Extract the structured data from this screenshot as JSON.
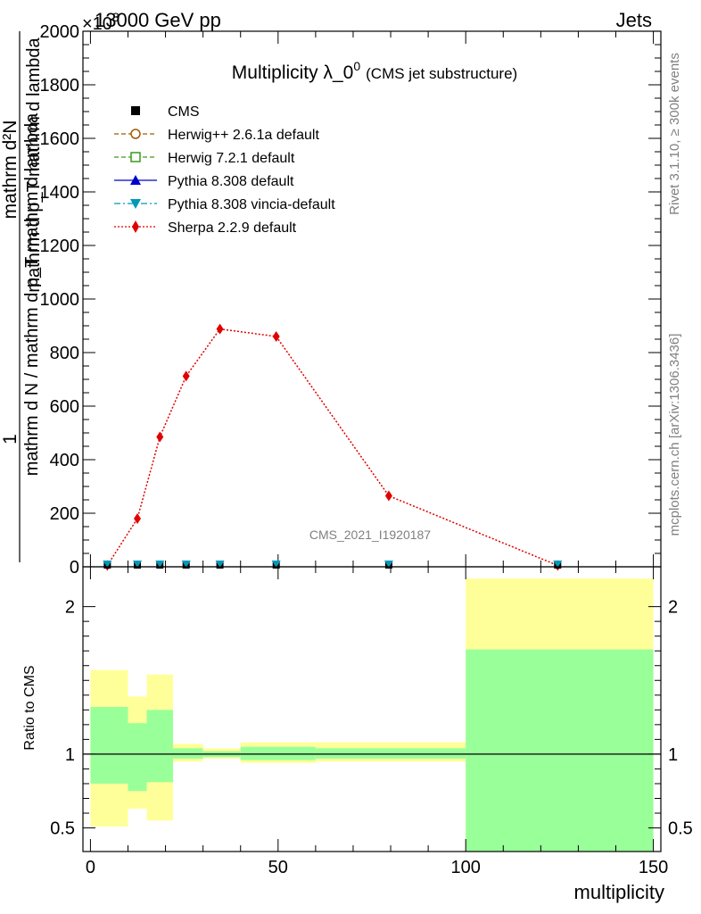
{
  "header": {
    "left": "13000 GeV pp",
    "right": "Jets",
    "exponent": "×10",
    "exponent_power": "3"
  },
  "side_labels": {
    "rivet": "Rivet 3.1.10, ≥ 300k events",
    "mcplots": "mcplots.cern.ch [arXiv:1306.3436]"
  },
  "watermark": "CMS_2021_I1920187",
  "chart_data": [
    {
      "type": "line",
      "title": "Multiplicity λ_0",
      "title_sup": "0",
      "subtitle": "(CMS jet substructure)",
      "ylabel_top": "1",
      "ylabel_numer": "mathrm d N / mathrm d p_T mathrm d lambda",
      "ylabel_numer_sub": "T",
      "ylabel_frac_top": "mathrm d²N",
      "ylabel_frac_bottom": "mathrm d p_T mathrm d lambda",
      "xlim": [
        -2,
        152
      ],
      "ylim": [
        0,
        2000
      ],
      "y_scale_factor": 1000,
      "yticks": [
        {
          "v": 0,
          "label": "0"
        },
        {
          "v": 200,
          "label": "200"
        },
        {
          "v": 400,
          "label": "400"
        },
        {
          "v": 600,
          "label": "600"
        },
        {
          "v": 800,
          "label": "800"
        },
        {
          "v": 1000,
          "label": "1000"
        },
        {
          "v": 1200,
          "label": "1200"
        },
        {
          "v": 1400,
          "label": "1400"
        },
        {
          "v": 1600,
          "label": "1600"
        },
        {
          "v": 1800,
          "label": "1800"
        },
        {
          "v": 2000,
          "label": "2000"
        }
      ],
      "legend": [
        {
          "label": "CMS",
          "color": "#000000",
          "marker": "square-filled",
          "line": "none"
        },
        {
          "label": "Herwig++ 2.6.1a default",
          "color": "#a05a00",
          "marker": "circle-open",
          "line": "dashed"
        },
        {
          "label": "Herwig 7.2.1 default",
          "color": "#3a9a1a",
          "marker": "square-open",
          "line": "dashed"
        },
        {
          "label": "Pythia 8.308 default",
          "color": "#0000cc",
          "marker": "triangle-up",
          "line": "solid"
        },
        {
          "label": "Pythia 8.308 vincia-default",
          "color": "#0099b8",
          "marker": "triangle-down",
          "line": "dashdot"
        },
        {
          "label": "Sherpa 2.2.9 default",
          "color": "#e00000",
          "marker": "diamond",
          "line": "dotted"
        }
      ],
      "series": [
        {
          "name": "Sherpa 2.2.9 default",
          "color": "#e00000",
          "x": [
            4.5,
            12.5,
            18.5,
            25.5,
            34.5,
            49.5,
            79.5,
            124.5
          ],
          "y": [
            5,
            180,
            485,
            712,
            888,
            860,
            265,
            5
          ]
        },
        {
          "name": "CMS",
          "color": "#000000",
          "x": [
            4.5,
            12.5,
            18.5,
            25.5,
            34.5,
            49.5,
            79.5,
            124.5
          ],
          "y": [
            0,
            0,
            0,
            0,
            0,
            0,
            0,
            0
          ]
        },
        {
          "name": "Pythia 8.308 vincia-default",
          "color": "#0099b8",
          "x": [
            4.5,
            12.5,
            18.5,
            25.5,
            34.5,
            49.5,
            79.5,
            124.5
          ],
          "y": [
            0,
            0,
            0,
            0,
            0,
            0,
            0,
            0
          ]
        }
      ]
    },
    {
      "type": "area",
      "ylabel": "Ratio to CMS",
      "xlabel": "multiplicity",
      "xlim": [
        -2,
        152
      ],
      "ylim": [
        0.34,
        2.27
      ],
      "yticks": [
        {
          "v": 0.5,
          "label": "0.5"
        },
        {
          "v": 1,
          "label": "1"
        },
        {
          "v": 2,
          "label": "2"
        }
      ],
      "xticks": [
        {
          "v": 0,
          "label": "0"
        },
        {
          "v": 50,
          "label": "50"
        },
        {
          "v": 100,
          "label": "100"
        },
        {
          "v": 150,
          "label": "150"
        }
      ],
      "reference_line": 1,
      "bands": [
        {
          "x0": 0,
          "x1": 10,
          "yellow": [
            0.51,
            1.57
          ],
          "green": [
            0.8,
            1.32
          ]
        },
        {
          "x0": 10,
          "x1": 15,
          "yellow": [
            0.63,
            1.39
          ],
          "green": [
            0.75,
            1.21
          ]
        },
        {
          "x0": 15,
          "x1": 22,
          "yellow": [
            0.55,
            1.54
          ],
          "green": [
            0.81,
            1.3
          ]
        },
        {
          "x0": 22,
          "x1": 30,
          "yellow": [
            0.95,
            1.07
          ],
          "green": [
            0.97,
            1.04
          ]
        },
        {
          "x0": 30,
          "x1": 40,
          "yellow": [
            0.97,
            1.04
          ],
          "green": [
            0.98,
            1.02
          ]
        },
        {
          "x0": 40,
          "x1": 60,
          "yellow": [
            0.94,
            1.08
          ],
          "green": [
            0.96,
            1.05
          ]
        },
        {
          "x0": 60,
          "x1": 100,
          "yellow": [
            0.95,
            1.08
          ],
          "green": [
            0.97,
            1.04
          ]
        },
        {
          "x0": 100,
          "x1": 150,
          "yellow": [
            0.34,
            2.19
          ],
          "green": [
            0.34,
            1.71
          ]
        }
      ],
      "band_colors": {
        "yellow": "#ffff99",
        "green": "#99ff99"
      }
    }
  ]
}
